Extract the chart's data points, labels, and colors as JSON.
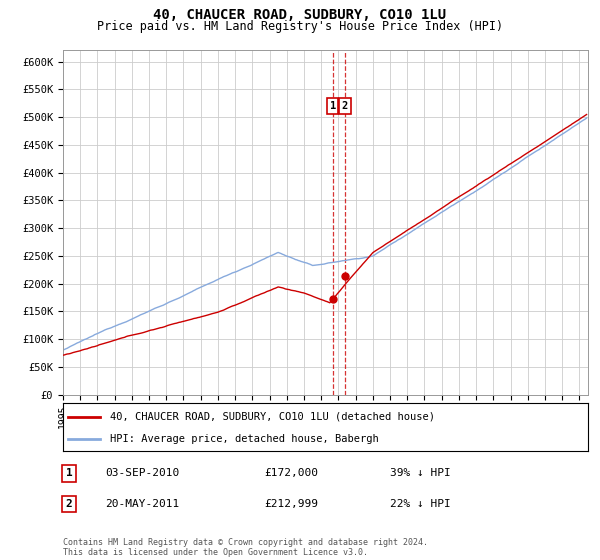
{
  "title": "40, CHAUCER ROAD, SUDBURY, CO10 1LU",
  "subtitle": "Price paid vs. HM Land Registry's House Price Index (HPI)",
  "ylim": [
    0,
    620000
  ],
  "yticks": [
    0,
    50000,
    100000,
    150000,
    200000,
    250000,
    300000,
    350000,
    400000,
    450000,
    500000,
    550000,
    600000
  ],
  "ytick_labels": [
    "£0",
    "£50K",
    "£100K",
    "£150K",
    "£200K",
    "£250K",
    "£300K",
    "£350K",
    "£400K",
    "£450K",
    "£500K",
    "£550K",
    "£600K"
  ],
  "xlim_start": 1995.0,
  "xlim_end": 2025.5,
  "property_color": "#cc0000",
  "hpi_color": "#88aadd",
  "sale1_date": 2010.67,
  "sale1_price": 172000,
  "sale2_date": 2011.38,
  "sale2_price": 212999,
  "legend_property": "40, CHAUCER ROAD, SUDBURY, CO10 1LU (detached house)",
  "legend_hpi": "HPI: Average price, detached house, Babergh",
  "annotation1_label": "1",
  "annotation1_text": "03-SEP-2010",
  "annotation1_price": "£172,000",
  "annotation1_hpi": "39% ↓ HPI",
  "annotation2_label": "2",
  "annotation2_text": "20-MAY-2011",
  "annotation2_price": "£212,999",
  "annotation2_hpi": "22% ↓ HPI",
  "footer": "Contains HM Land Registry data © Crown copyright and database right 2024.\nThis data is licensed under the Open Government Licence v3.0.",
  "background_color": "#ffffff",
  "grid_color": "#cccccc"
}
